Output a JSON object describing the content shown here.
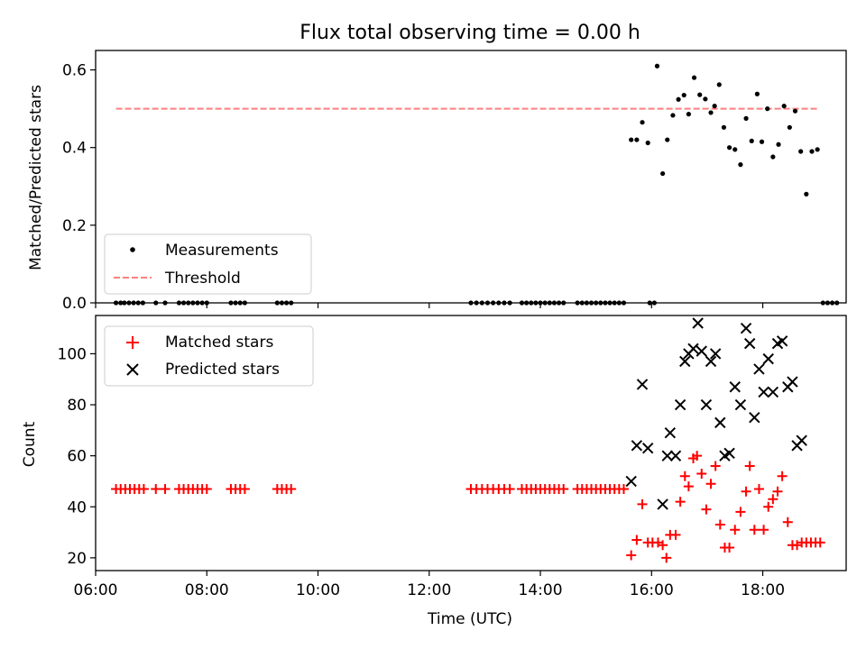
{
  "figure": {
    "title": "Flux total observing time = 0.00 h",
    "xlabel": "Time (UTC)"
  },
  "chart_data": [
    {
      "type": "scatter",
      "panel": "top",
      "ylabel": "Matched/Predicted stars",
      "xlim": [
        "06:00",
        "19:30"
      ],
      "ylim": [
        0,
        0.65
      ],
      "yticks": [
        "0.0",
        "0.2",
        "0.4",
        "0.6"
      ],
      "legend": {
        "position": "lower-left",
        "entries": [
          "Measurements",
          "Threshold"
        ]
      },
      "series": [
        {
          "name": "Measurements",
          "marker": "dot",
          "color": "#000000",
          "points": [
            [
              "06:22",
              0
            ],
            [
              "06:27",
              0
            ],
            [
              "06:31",
              0
            ],
            [
              "06:36",
              0
            ],
            [
              "06:41",
              0
            ],
            [
              "06:46",
              0
            ],
            [
              "06:51",
              0
            ],
            [
              "07:05",
              0
            ],
            [
              "07:15",
              0
            ],
            [
              "07:30",
              0
            ],
            [
              "07:35",
              0
            ],
            [
              "07:40",
              0
            ],
            [
              "07:45",
              0
            ],
            [
              "07:50",
              0
            ],
            [
              "07:55",
              0
            ],
            [
              "08:00",
              0
            ],
            [
              "08:26",
              0
            ],
            [
              "08:31",
              0
            ],
            [
              "08:36",
              0
            ],
            [
              "08:41",
              0
            ],
            [
              "09:16",
              0
            ],
            [
              "09:21",
              0
            ],
            [
              "09:26",
              0
            ],
            [
              "09:31",
              0
            ],
            [
              "12:45",
              0
            ],
            [
              "12:51",
              0
            ],
            [
              "12:57",
              0
            ],
            [
              "13:03",
              0
            ],
            [
              "13:09",
              0
            ],
            [
              "13:15",
              0
            ],
            [
              "13:21",
              0
            ],
            [
              "13:27",
              0
            ],
            [
              "13:40",
              0
            ],
            [
              "13:45",
              0
            ],
            [
              "13:50",
              0
            ],
            [
              "13:55",
              0
            ],
            [
              "14:00",
              0
            ],
            [
              "14:05",
              0
            ],
            [
              "14:10",
              0
            ],
            [
              "14:15",
              0
            ],
            [
              "14:20",
              0
            ],
            [
              "14:25",
              0
            ],
            [
              "14:40",
              0
            ],
            [
              "14:45",
              0
            ],
            [
              "14:50",
              0
            ],
            [
              "14:55",
              0
            ],
            [
              "15:00",
              0
            ],
            [
              "15:05",
              0
            ],
            [
              "15:10",
              0
            ],
            [
              "15:15",
              0
            ],
            [
              "15:20",
              0
            ],
            [
              "15:25",
              0
            ],
            [
              "15:30",
              0
            ],
            [
              "15:58",
              0
            ],
            [
              "16:03",
              0
            ],
            [
              "15:38",
              0.42
            ],
            [
              "15:44",
              0.42
            ],
            [
              "15:50",
              0.465
            ],
            [
              "15:56",
              0.412
            ],
            [
              "16:06",
              0.61
            ],
            [
              "16:12",
              0.333
            ],
            [
              "16:17",
              0.42
            ],
            [
              "16:23",
              0.483
            ],
            [
              "16:29",
              0.524
            ],
            [
              "16:35",
              0.535
            ],
            [
              "16:40",
              0.486
            ],
            [
              "16:46",
              0.58
            ],
            [
              "16:52",
              0.536
            ],
            [
              "16:58",
              0.525
            ],
            [
              "17:04",
              0.49
            ],
            [
              "17:08",
              0.507
            ],
            [
              "17:13",
              0.562
            ],
            [
              "17:18",
              0.452
            ],
            [
              "17:24",
              0.4
            ],
            [
              "17:30",
              0.395
            ],
            [
              "17:36",
              0.356
            ],
            [
              "17:42",
              0.475
            ],
            [
              "17:48",
              0.417
            ],
            [
              "17:54",
              0.538
            ],
            [
              "17:59",
              0.415
            ],
            [
              "18:05",
              0.5
            ],
            [
              "18:11",
              0.376
            ],
            [
              "18:17",
              0.408
            ],
            [
              "18:23",
              0.507
            ],
            [
              "18:29",
              0.452
            ],
            [
              "18:35",
              0.494
            ],
            [
              "18:41",
              0.39
            ],
            [
              "18:47",
              0.28
            ],
            [
              "18:53",
              0.39
            ],
            [
              "18:59",
              0.395
            ],
            [
              "19:05",
              0
            ],
            [
              "19:10",
              0
            ],
            [
              "19:15",
              0
            ],
            [
              "19:20",
              0
            ]
          ]
        },
        {
          "name": "Threshold",
          "style": "dashed-line",
          "color": "#ff7f7f",
          "points": [
            [
              "06:22",
              0.5
            ],
            [
              "19:00",
              0.5
            ]
          ]
        }
      ]
    },
    {
      "type": "scatter",
      "panel": "bottom",
      "ylabel": "Count",
      "xlim": [
        "06:00",
        "19:30"
      ],
      "ylim": [
        15,
        115
      ],
      "yticks": [
        "20",
        "40",
        "60",
        "80",
        "100"
      ],
      "xticks": [
        "06:00",
        "08:00",
        "10:00",
        "12:00",
        "14:00",
        "16:00",
        "18:00"
      ],
      "legend": {
        "position": "upper-left",
        "entries": [
          "Matched stars",
          "Predicted stars"
        ]
      },
      "series": [
        {
          "name": "Matched stars",
          "marker": "plus",
          "color": "#ff0000",
          "points": [
            [
              "06:22",
              47
            ],
            [
              "06:27",
              47
            ],
            [
              "06:32",
              47
            ],
            [
              "06:37",
              47
            ],
            [
              "06:42",
              47
            ],
            [
              "06:47",
              47
            ],
            [
              "06:52",
              47
            ],
            [
              "07:05",
              47
            ],
            [
              "07:15",
              47
            ],
            [
              "07:30",
              47
            ],
            [
              "07:35",
              47
            ],
            [
              "07:40",
              47
            ],
            [
              "07:45",
              47
            ],
            [
              "07:50",
              47
            ],
            [
              "07:55",
              47
            ],
            [
              "08:00",
              47
            ],
            [
              "08:26",
              47
            ],
            [
              "08:31",
              47
            ],
            [
              "08:36",
              47
            ],
            [
              "08:41",
              47
            ],
            [
              "09:16",
              47
            ],
            [
              "09:21",
              47
            ],
            [
              "09:26",
              47
            ],
            [
              "09:31",
              47
            ],
            [
              "12:45",
              47
            ],
            [
              "12:51",
              47
            ],
            [
              "12:57",
              47
            ],
            [
              "13:03",
              47
            ],
            [
              "13:09",
              47
            ],
            [
              "13:15",
              47
            ],
            [
              "13:21",
              47
            ],
            [
              "13:27",
              47
            ],
            [
              "13:40",
              47
            ],
            [
              "13:45",
              47
            ],
            [
              "13:50",
              47
            ],
            [
              "13:55",
              47
            ],
            [
              "14:00",
              47
            ],
            [
              "14:05",
              47
            ],
            [
              "14:10",
              47
            ],
            [
              "14:15",
              47
            ],
            [
              "14:20",
              47
            ],
            [
              "14:25",
              47
            ],
            [
              "14:40",
              47
            ],
            [
              "14:45",
              47
            ],
            [
              "14:50",
              47
            ],
            [
              "14:55",
              47
            ],
            [
              "15:00",
              47
            ],
            [
              "15:05",
              47
            ],
            [
              "15:10",
              47
            ],
            [
              "15:15",
              47
            ],
            [
              "15:20",
              47
            ],
            [
              "15:25",
              47
            ],
            [
              "15:30",
              47
            ],
            [
              "15:38",
              21
            ],
            [
              "15:44",
              27
            ],
            [
              "15:50",
              41
            ],
            [
              "15:56",
              26
            ],
            [
              "16:01",
              26
            ],
            [
              "16:07",
              26
            ],
            [
              "16:12",
              25
            ],
            [
              "16:16",
              20
            ],
            [
              "16:20",
              29
            ],
            [
              "16:26",
              29
            ],
            [
              "16:31",
              42
            ],
            [
              "16:36",
              52
            ],
            [
              "16:40",
              48
            ],
            [
              "16:45",
              59
            ],
            [
              "16:49",
              60
            ],
            [
              "16:54",
              53
            ],
            [
              "16:59",
              39
            ],
            [
              "17:04",
              49
            ],
            [
              "17:09",
              56
            ],
            [
              "17:14",
              33
            ],
            [
              "17:19",
              24
            ],
            [
              "17:24",
              24
            ],
            [
              "17:30",
              31
            ],
            [
              "17:36",
              38
            ],
            [
              "17:42",
              46
            ],
            [
              "17:46",
              56
            ],
            [
              "17:51",
              31
            ],
            [
              "17:56",
              47
            ],
            [
              "18:01",
              31
            ],
            [
              "18:06",
              40
            ],
            [
              "18:11",
              43
            ],
            [
              "18:16",
              46
            ],
            [
              "18:21",
              52
            ],
            [
              "18:27",
              34
            ],
            [
              "18:32",
              25
            ],
            [
              "18:37",
              25
            ],
            [
              "18:42",
              26
            ],
            [
              "18:47",
              26
            ],
            [
              "18:52",
              26
            ],
            [
              "18:57",
              26
            ],
            [
              "19:02",
              26
            ]
          ]
        },
        {
          "name": "Predicted stars",
          "marker": "x",
          "color": "#000000",
          "points": [
            [
              "15:38",
              50
            ],
            [
              "15:44",
              64
            ],
            [
              "15:50",
              88
            ],
            [
              "15:56",
              63
            ],
            [
              "16:12",
              41
            ],
            [
              "16:17",
              60
            ],
            [
              "16:20",
              69
            ],
            [
              "16:26",
              60
            ],
            [
              "16:31",
              80
            ],
            [
              "16:36",
              97
            ],
            [
              "16:40",
              100
            ],
            [
              "16:45",
              102
            ],
            [
              "16:50",
              112
            ],
            [
              "16:54",
              101
            ],
            [
              "16:59",
              80
            ],
            [
              "17:04",
              97
            ],
            [
              "17:09",
              100
            ],
            [
              "17:14",
              73
            ],
            [
              "17:19",
              60
            ],
            [
              "17:24",
              61
            ],
            [
              "17:30",
              87
            ],
            [
              "17:36",
              80
            ],
            [
              "17:42",
              110
            ],
            [
              "17:46",
              104
            ],
            [
              "17:51",
              75
            ],
            [
              "17:56",
              94
            ],
            [
              "18:01",
              85
            ],
            [
              "18:06",
              98
            ],
            [
              "18:11",
              85
            ],
            [
              "18:16",
              104
            ],
            [
              "18:21",
              105
            ],
            [
              "18:27",
              87
            ],
            [
              "18:32",
              89
            ],
            [
              "18:37",
              64
            ],
            [
              "18:42",
              66
            ]
          ]
        }
      ]
    }
  ]
}
